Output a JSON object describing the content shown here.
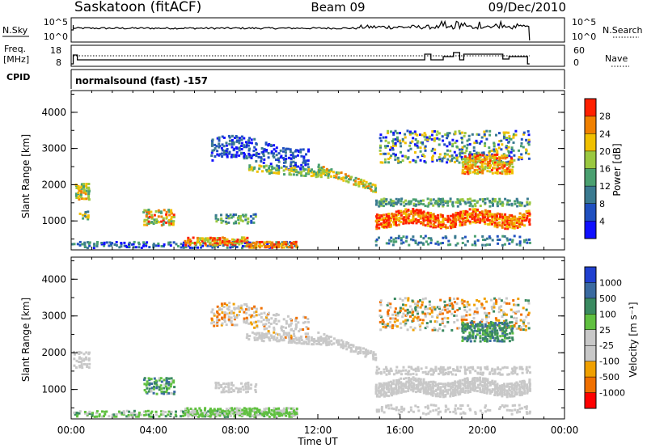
{
  "header": {
    "station": "Saskatoon (fitACF)",
    "beam": "Beam 09",
    "date": "09/Dec/2010"
  },
  "strips": {
    "nsky_label": "N.Sky",
    "nsky_ticks": [
      "10^5",
      "10^0"
    ],
    "nsearch_label": "N.Search",
    "nsearch_ticks": [
      "10^5",
      "10^0"
    ],
    "freq_label_1": "Freq.",
    "freq_label_2": "[MHz]",
    "freq_ticks": [
      "18",
      "8"
    ],
    "nave_label": "Nave",
    "nave_ticks": [
      "60",
      "0"
    ],
    "cpid_label": "CPID",
    "cpid_text": "normalsound (fast) -157"
  },
  "chart_data": [
    {
      "type": "heatmap",
      "name": "power",
      "ylabel": "Slant Range [km]",
      "yticks": [
        "1000",
        "2000",
        "3000",
        "4000"
      ],
      "ylim": [
        200,
        4600
      ],
      "colorbar_label": "Power [dB]",
      "colorbar_ticks": [
        "4",
        "8",
        "12",
        "16",
        "20",
        "24",
        "28"
      ],
      "colors": [
        "#1010ff",
        "#2050c0",
        "#3a7a90",
        "#4aa070",
        "#9ac840",
        "#f0c000",
        "#f08000",
        "#ff2000"
      ]
    },
    {
      "type": "heatmap",
      "name": "velocity",
      "ylabel": "Slant Range [km]",
      "yticks": [
        "1000",
        "2000",
        "3000",
        "4000"
      ],
      "ylim": [
        200,
        4600
      ],
      "colorbar_label": "Velocity [m s⁻¹]",
      "colorbar_ticks": [
        "1000",
        "500",
        "100",
        "25",
        "-25",
        "-100",
        "-500",
        "-1000"
      ],
      "colors": [
        "#2040d0",
        "#3a6aa0",
        "#3a8a60",
        "#60c040",
        "#c8c8c8",
        "#c8c8c8",
        "#f0a000",
        "#f07000",
        "#ff0000"
      ]
    }
  ],
  "xaxis": {
    "label": "Time UT",
    "ticks": [
      "00:00",
      "04:00",
      "08:00",
      "12:00",
      "16:00",
      "20:00",
      "00:00"
    ]
  }
}
